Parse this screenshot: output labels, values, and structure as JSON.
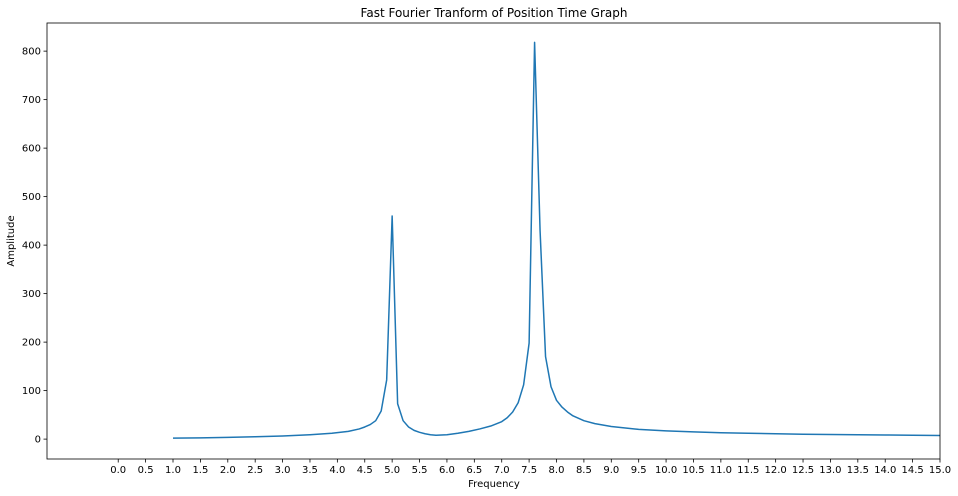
{
  "chart_data": {
    "type": "line",
    "title": "Fast Fourier Tranform of Position Time Graph",
    "xlabel": "Frequency",
    "ylabel": "Amplitude",
    "xlim": [
      -1.3,
      15.0
    ],
    "ylim": [
      -41,
      858
    ],
    "x_ticks": [
      "0.0",
      "0.5",
      "1.0",
      "1.5",
      "2.0",
      "2.5",
      "3.0",
      "3.5",
      "4.0",
      "4.5",
      "5.0",
      "5.5",
      "6.0",
      "6.5",
      "7.0",
      "7.5",
      "8.0",
      "8.5",
      "9.0",
      "9.5",
      "10.0",
      "10.5",
      "11.0",
      "11.5",
      "12.0",
      "12.5",
      "13.0",
      "13.5",
      "14.0",
      "14.5",
      "15.0"
    ],
    "y_ticks": [
      "0",
      "100",
      "200",
      "300",
      "400",
      "500",
      "600",
      "700",
      "800"
    ],
    "grid": false,
    "series": [
      {
        "color": "#1f77b4",
        "x": [
          1.0,
          1.5,
          2.0,
          2.5,
          3.0,
          3.5,
          3.9,
          4.2,
          4.4,
          4.5,
          4.6,
          4.7,
          4.8,
          4.9,
          5.0,
          5.1,
          5.2,
          5.3,
          5.4,
          5.5,
          5.6,
          5.7,
          5.8,
          6.0,
          6.2,
          6.4,
          6.6,
          6.8,
          7.0,
          7.1,
          7.2,
          7.3,
          7.4,
          7.5,
          7.6,
          7.7,
          7.8,
          7.9,
          8.0,
          8.1,
          8.2,
          8.3,
          8.5,
          8.7,
          9.0,
          9.5,
          10.0,
          10.5,
          11.0,
          11.5,
          12.0,
          12.5,
          13.0,
          13.5,
          14.0,
          14.5,
          15.0
        ],
        "y": [
          2,
          2.5,
          3.5,
          5,
          6.5,
          9,
          12,
          16,
          21,
          25,
          30,
          38,
          58,
          122,
          460,
          73,
          38,
          25,
          18,
          14,
          11,
          9,
          8,
          9,
          12,
          16,
          21,
          27,
          36,
          44,
          56,
          75,
          112,
          198,
          818,
          430,
          170,
          108,
          80,
          66,
          56,
          48,
          38,
          32,
          26,
          20,
          17,
          15,
          13,
          12,
          11,
          10,
          9.5,
          9,
          8.5,
          8,
          7.5
        ]
      }
    ]
  }
}
